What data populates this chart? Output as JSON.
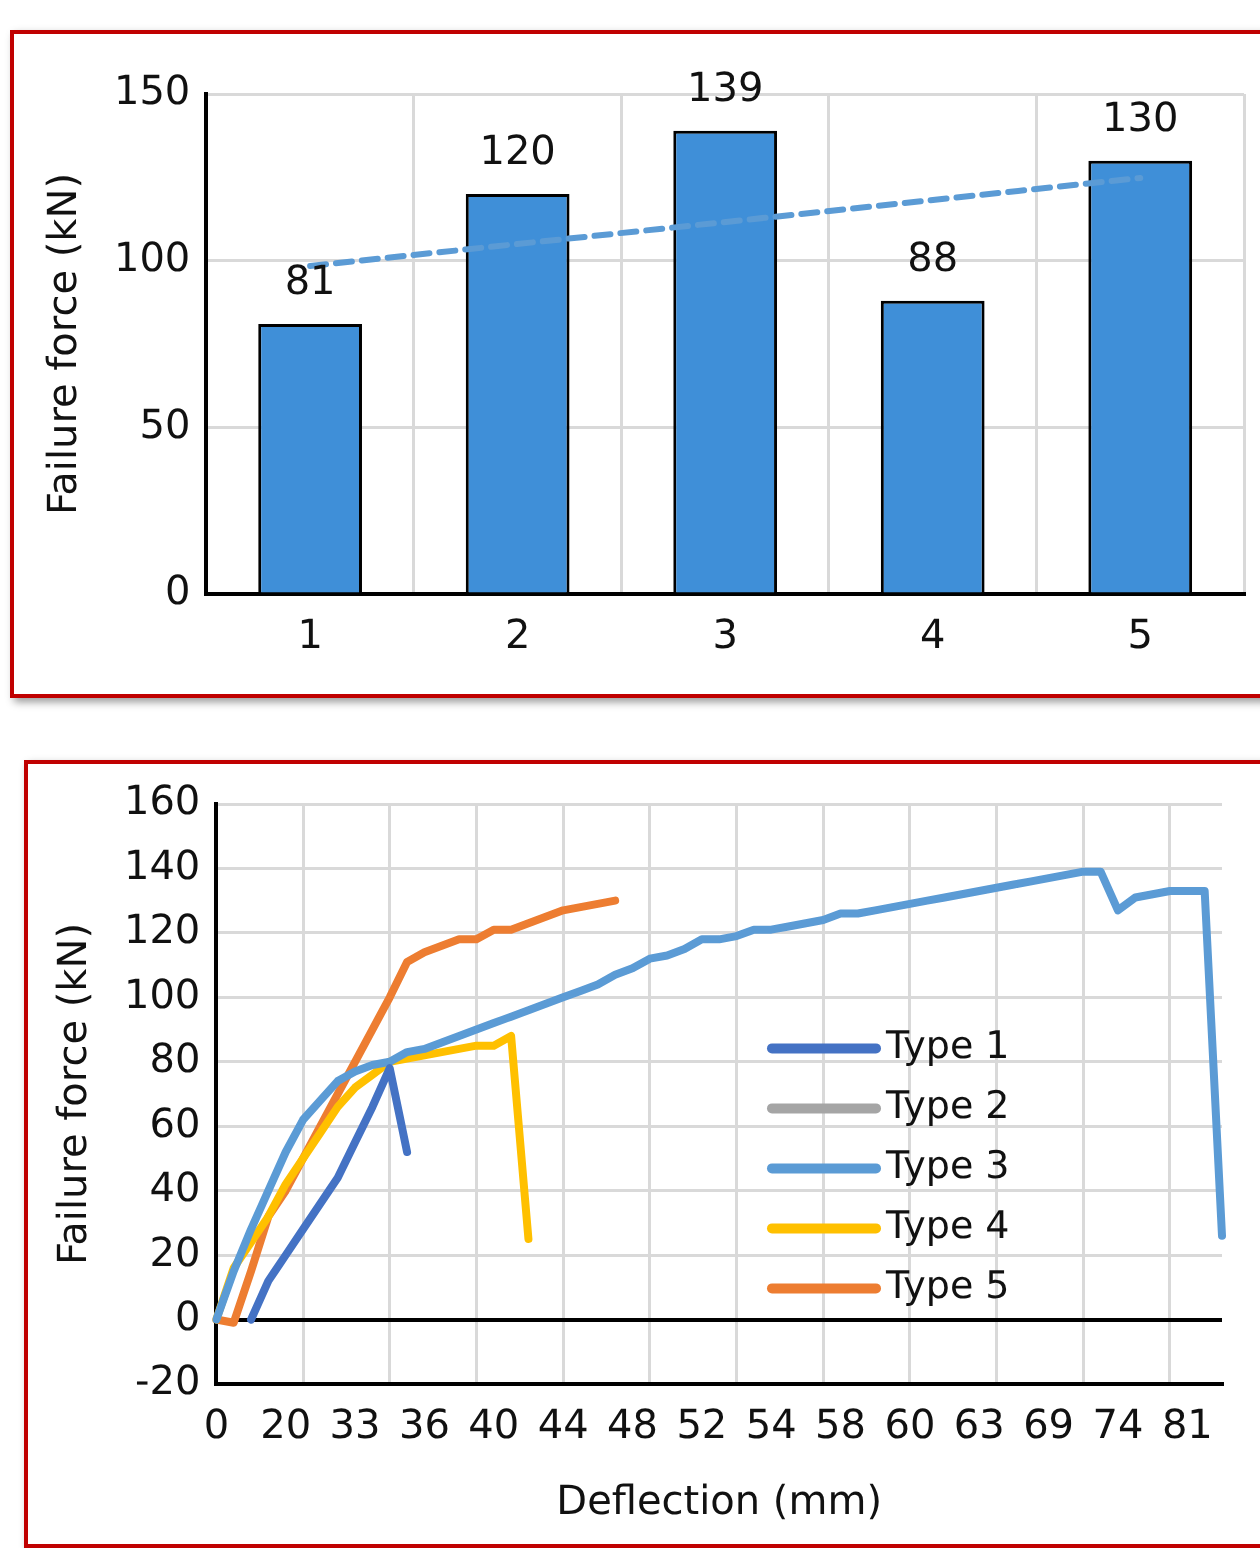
{
  "chart_data": [
    {
      "type": "bar",
      "ylabel": "Failure force (kN)",
      "categories": [
        "1",
        "2",
        "3",
        "4",
        "5"
      ],
      "ylim": [
        0,
        150
      ],
      "yticks": [
        0,
        50,
        100,
        150
      ],
      "grid": true,
      "legend": false,
      "series": [
        {
          "type": "bar",
          "color": "#3f8fd8",
          "values": [
            81,
            120,
            139,
            88,
            130
          ],
          "value_labels": [
            "81",
            "120",
            "139",
            "88",
            "130"
          ]
        },
        {
          "type": "line",
          "color": "#5b9bd5",
          "line_style": "dashed",
          "x": [
            "1",
            "5"
          ],
          "values": [
            98.4,
            124.8
          ]
        }
      ]
    },
    {
      "type": "line",
      "xlabel": "Deflection (mm)",
      "ylabel": "Failure force (kN)",
      "categories": [
        "0",
        null,
        null,
        null,
        "20",
        null,
        null,
        null,
        "33",
        null,
        null,
        null,
        "36",
        null,
        null,
        null,
        "40",
        null,
        null,
        null,
        "44",
        null,
        null,
        null,
        "48",
        null,
        null,
        null,
        "52",
        null,
        null,
        null,
        "54",
        null,
        null,
        null,
        "58",
        null,
        null,
        null,
        "60",
        null,
        null,
        null,
        "63",
        null,
        null,
        null,
        "69",
        null,
        null,
        null,
        "74",
        null,
        null,
        null,
        "81",
        null,
        null
      ],
      "ylim": [
        -20,
        160
      ],
      "yticks": [
        -20,
        0,
        20,
        40,
        60,
        80,
        100,
        120,
        140,
        160
      ],
      "grid": true,
      "legend": "right",
      "marker": "none",
      "line_style": "solid",
      "series": [
        {
          "name": "Type 1",
          "color": "#4472c4",
          "values": [
            null,
            null,
            0,
            12,
            20,
            28,
            36,
            44,
            55,
            66,
            78,
            52,
            null,
            null,
            null,
            null,
            null,
            null,
            null,
            null,
            null,
            null,
            null,
            null,
            null,
            null,
            null,
            null,
            null,
            null,
            null,
            null,
            null,
            null,
            null,
            null,
            null,
            null,
            null,
            null,
            null,
            null,
            null,
            null,
            null,
            null,
            null,
            null,
            null,
            null,
            null,
            null,
            null,
            null,
            null,
            null,
            null,
            null,
            null
          ]
        },
        {
          "name": "Type 2",
          "color": "#a5a5a5",
          "values": [
            null,
            null,
            null,
            null,
            null,
            null,
            null,
            null,
            null,
            null,
            null,
            null,
            null,
            null,
            null,
            null,
            null,
            null,
            null,
            null,
            null,
            null,
            null,
            null,
            null,
            null,
            null,
            null,
            null,
            null,
            null,
            null,
            null,
            null,
            null,
            null,
            null,
            null,
            null,
            null,
            null,
            null,
            null,
            null,
            null,
            null,
            null,
            null,
            null,
            null,
            null,
            null,
            null,
            null,
            null,
            null,
            null,
            null,
            null
          ]
        },
        {
          "name": "Type 3",
          "color": "#5b9bd5",
          "values": [
            0,
            15,
            28,
            40,
            52,
            62,
            68,
            74,
            77,
            79,
            80,
            83,
            84,
            86,
            88,
            90,
            92,
            94,
            96,
            98,
            100,
            102,
            104,
            107,
            109,
            112,
            113,
            115,
            118,
            118,
            119,
            121,
            121,
            122,
            123,
            124,
            126,
            126,
            127,
            128,
            129,
            130,
            131,
            132,
            133,
            134,
            135,
            136,
            137,
            138,
            139,
            139,
            127,
            131,
            132,
            133,
            133,
            133,
            26
          ]
        },
        {
          "name": "Type 4",
          "color": "#ffc000",
          "values": [
            0,
            16,
            24,
            32,
            42,
            50,
            58,
            66,
            72,
            76,
            80,
            81,
            82,
            83,
            84,
            85,
            85,
            88,
            25,
            null,
            null,
            null,
            null,
            null,
            null,
            null,
            null,
            null,
            null,
            null,
            null,
            null,
            null,
            null,
            null,
            null,
            null,
            null,
            null,
            null,
            null,
            null,
            null,
            null,
            null,
            null,
            null,
            null,
            null,
            null,
            null,
            null,
            null,
            null,
            null,
            null,
            null,
            null,
            null
          ]
        },
        {
          "name": "Type 5",
          "color": "#ed7d31",
          "values": [
            0,
            -1,
            15,
            32,
            40,
            50,
            60,
            70,
            80,
            90,
            100,
            111,
            114,
            116,
            118,
            118,
            121,
            121,
            123,
            125,
            127,
            128,
            129,
            130,
            null,
            null,
            null,
            null,
            null,
            null,
            null,
            null,
            null,
            null,
            null,
            null,
            null,
            null,
            null,
            null,
            null,
            null,
            null,
            null,
            null,
            null,
            null,
            null,
            null,
            null,
            null,
            null,
            null,
            null,
            null,
            null,
            null,
            null,
            null
          ]
        }
      ]
    }
  ]
}
